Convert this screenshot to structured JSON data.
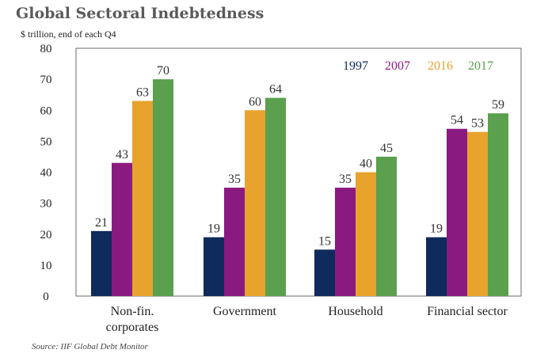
{
  "title": "Global Sectoral Indebtedness",
  "subtitle": "$ trillion, end of each Q4",
  "source": "Source: IIF Global Debt Monitor",
  "chart_data": {
    "type": "bar",
    "categories": [
      [
        "Non-fin.",
        "corporates"
      ],
      [
        "Government"
      ],
      [
        "Household"
      ],
      [
        "Financial sector"
      ]
    ],
    "series": [
      {
        "name": "1997",
        "color": "#0f2a5c",
        "values": [
          21,
          19,
          15,
          19
        ]
      },
      {
        "name": "2007",
        "color": "#8b1a80",
        "values": [
          43,
          35,
          35,
          54
        ]
      },
      {
        "name": "2016",
        "color": "#e8a32c",
        "values": [
          63,
          60,
          40,
          53
        ]
      },
      {
        "name": "2017",
        "color": "#5aa04e",
        "values": [
          70,
          64,
          45,
          59
        ]
      }
    ],
    "ylim": [
      0,
      80
    ],
    "yticks": [
      0,
      10,
      20,
      30,
      40,
      50,
      60,
      70,
      80
    ],
    "legend": "top-right",
    "grid": false
  }
}
